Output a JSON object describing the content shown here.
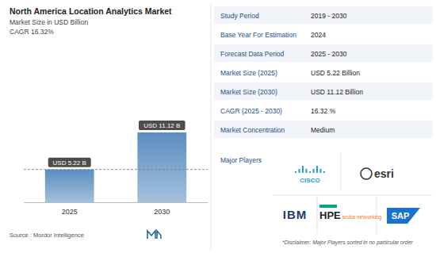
{
  "chart_data": {
    "type": "bar",
    "title": "North America Location Analytics Market",
    "subtitle": "Market Size in USD Billion",
    "annotations": [
      "CAGR 16.32%"
    ],
    "categories": [
      "2025",
      "2030"
    ],
    "values": [
      5.22,
      11.12
    ],
    "value_labels": [
      "USD 5.22 B",
      "USD 11.12 B"
    ],
    "data_labels": true,
    "color": "#5a8dbf",
    "ylim": [
      0,
      12
    ],
    "tick_labels": "x",
    "source": "Source : Mordor Intelligence"
  },
  "info_table": [
    [
      "Study Period",
      "2019 - 2030"
    ],
    [
      "Base Year For Estimation",
      "2024"
    ],
    [
      "Forecast Data Period",
      "2025 - 2030"
    ],
    [
      "Market Size (2025)",
      "USD 5.22 Billion"
    ],
    [
      "Market Size (2030)",
      "USD 11.12 Billion"
    ],
    [
      "CAGR (2025 - 2030)",
      "16.32 %"
    ],
    [
      "Market Concentration",
      "Medium"
    ]
  ],
  "major_players_title": "Major Players",
  "major_players": [
    "CISCO",
    "esri",
    "IBM",
    "HPE aruba networking",
    "SAP"
  ],
  "disclaimer": "*Disclaimer: Major Players sorted in no particular order"
}
